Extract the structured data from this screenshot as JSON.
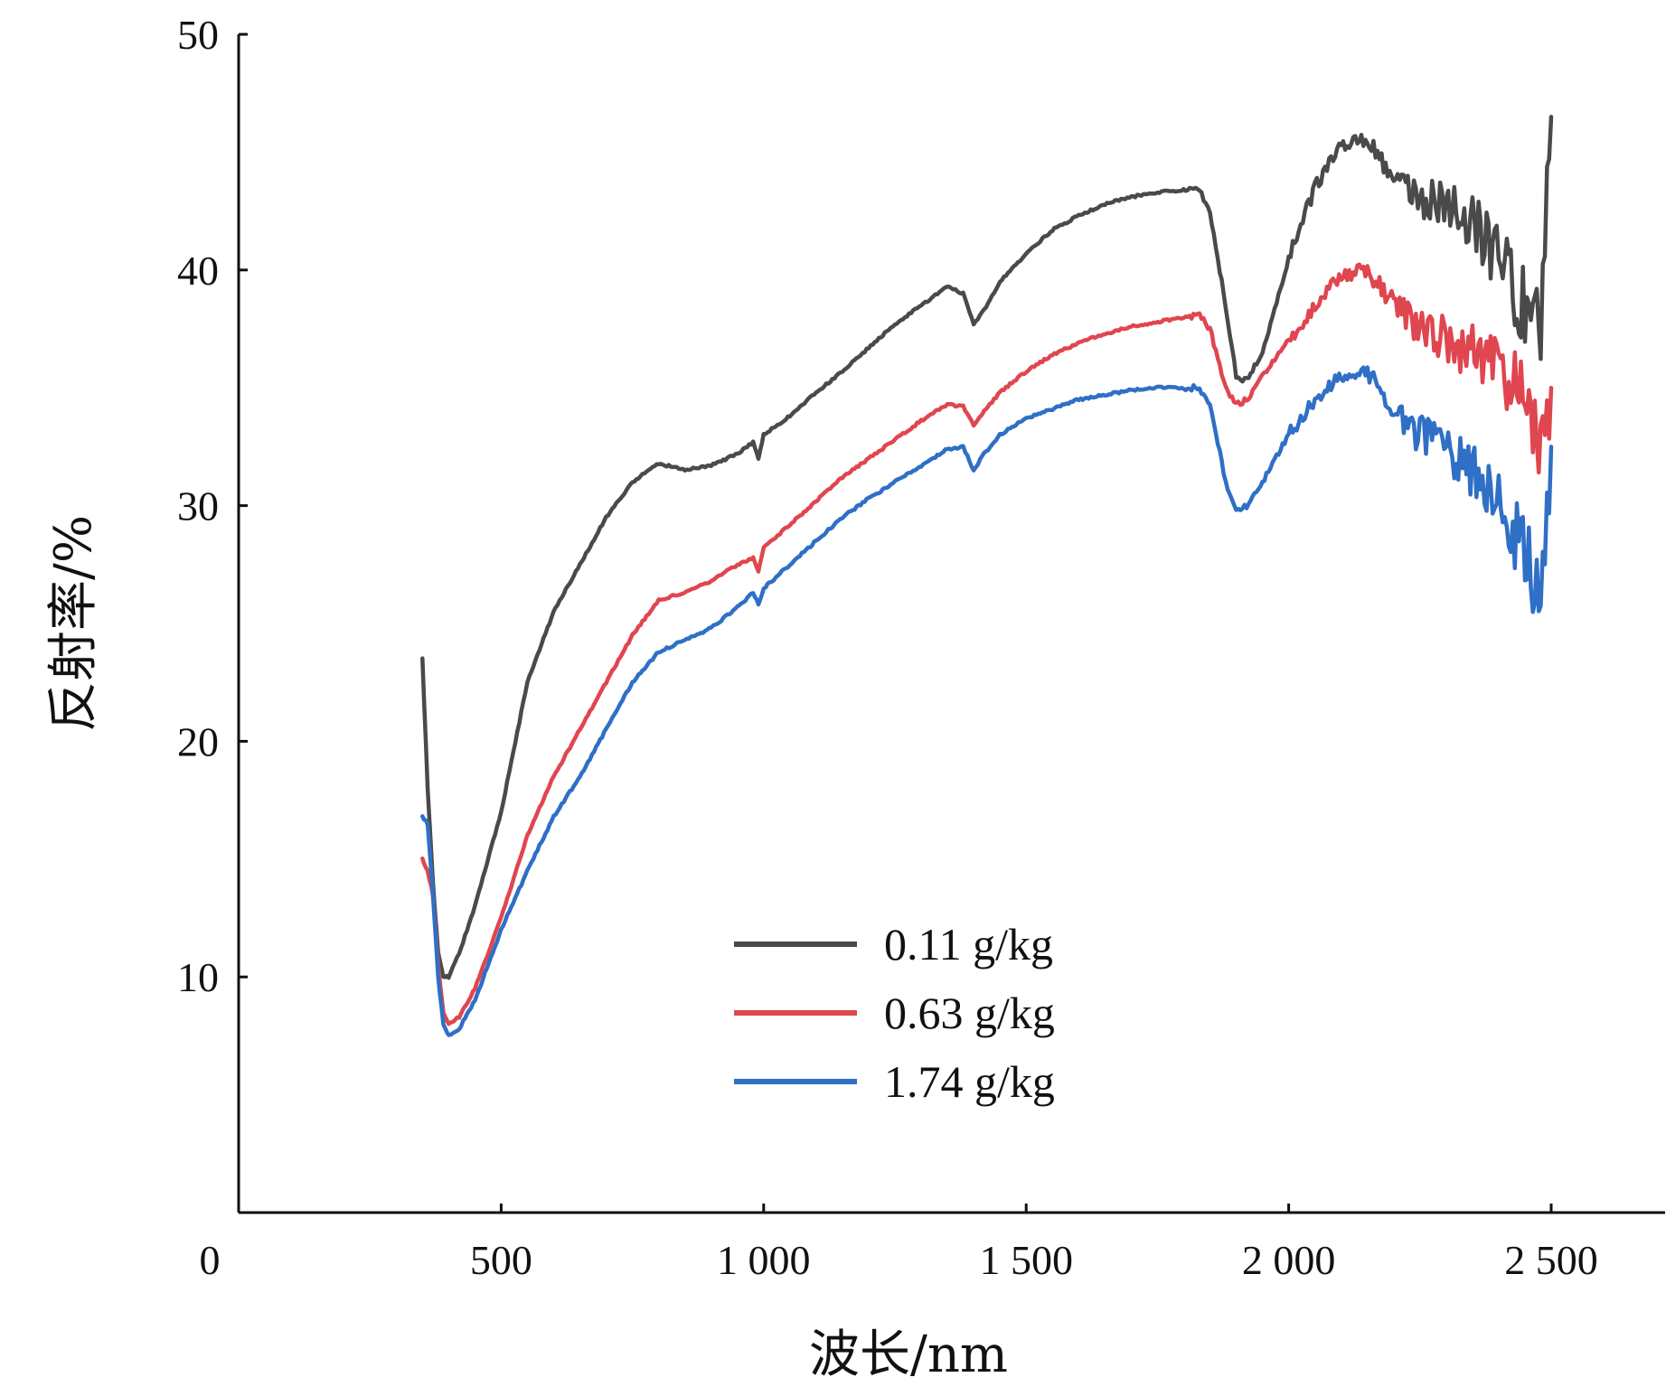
{
  "chart_data": {
    "type": "line",
    "title": "",
    "xlabel": "波长/nm",
    "ylabel": "反射率/%",
    "xlim": [
      0,
      2750
    ],
    "ylim": [
      0,
      50
    ],
    "xticks": [
      0,
      500,
      1000,
      1500,
      2000,
      2500
    ],
    "xtick_labels": [
      "0",
      "500",
      "1 000",
      "1 500",
      "2 000",
      "2 500"
    ],
    "yticks": [
      10,
      20,
      30,
      40,
      50
    ],
    "ytick_labels": [
      "10",
      "20",
      "30",
      "40",
      "50"
    ],
    "grid": false,
    "legend_position": "lower-center",
    "series": [
      {
        "name": "0.11 g/kg",
        "color": "#4a4a4a",
        "x": [
          350,
          360,
          370,
          380,
          390,
          400,
          420,
          450,
          500,
          550,
          600,
          650,
          700,
          750,
          800,
          850,
          900,
          950,
          980,
          990,
          1000,
          1050,
          1100,
          1150,
          1200,
          1250,
          1300,
          1350,
          1380,
          1400,
          1420,
          1450,
          1500,
          1550,
          1600,
          1650,
          1700,
          1750,
          1800,
          1830,
          1850,
          1880,
          1900,
          1920,
          1950,
          2000,
          2050,
          2100,
          2150,
          2200,
          2250,
          2300,
          2350,
          2400,
          2450,
          2480,
          2500
        ],
        "y": [
          23.5,
          18.0,
          14.0,
          11.0,
          10.0,
          10.0,
          11.0,
          13.0,
          17.0,
          22.5,
          25.5,
          27.5,
          29.5,
          31.0,
          31.8,
          31.5,
          31.7,
          32.2,
          32.7,
          32.0,
          33.0,
          33.8,
          34.8,
          35.7,
          36.7,
          37.7,
          38.5,
          39.3,
          39.0,
          37.7,
          38.3,
          39.5,
          40.7,
          41.7,
          42.3,
          42.8,
          43.1,
          43.3,
          43.4,
          43.4,
          42.5,
          38.5,
          35.5,
          35.3,
          36.5,
          40.5,
          43.5,
          45.3,
          45.5,
          44.0,
          43.0,
          43.0,
          42.0,
          40.5,
          38.5,
          38.0,
          46.5
        ]
      },
      {
        "name": "0.63 g/kg",
        "color": "#e0464f",
        "x": [
          350,
          360,
          370,
          380,
          390,
          400,
          420,
          450,
          500,
          550,
          600,
          650,
          700,
          750,
          800,
          850,
          900,
          950,
          980,
          990,
          1000,
          1050,
          1100,
          1150,
          1200,
          1250,
          1300,
          1350,
          1380,
          1400,
          1420,
          1450,
          1500,
          1550,
          1600,
          1650,
          1700,
          1750,
          1800,
          1830,
          1850,
          1880,
          1900,
          1920,
          1950,
          2000,
          2050,
          2100,
          2150,
          2200,
          2250,
          2300,
          2350,
          2400,
          2450,
          2480,
          2500
        ],
        "y": [
          15.0,
          14.5,
          13.5,
          10.5,
          8.5,
          8.0,
          8.3,
          9.5,
          12.5,
          16.0,
          18.5,
          20.5,
          22.5,
          24.5,
          26.0,
          26.3,
          26.8,
          27.5,
          27.8,
          27.2,
          28.2,
          29.2,
          30.2,
          31.2,
          32.0,
          32.8,
          33.6,
          34.3,
          34.2,
          33.4,
          34.0,
          34.8,
          35.7,
          36.4,
          36.9,
          37.3,
          37.6,
          37.8,
          38.0,
          38.1,
          37.5,
          35.0,
          34.3,
          34.5,
          35.5,
          37.0,
          38.5,
          39.8,
          40.0,
          38.5,
          37.5,
          37.0,
          36.5,
          36.0,
          34.5,
          32.0,
          35.0
        ]
      },
      {
        "name": "1.74 g/kg",
        "color": "#2f6fc6",
        "x": [
          350,
          360,
          370,
          380,
          390,
          400,
          420,
          450,
          500,
          550,
          600,
          650,
          700,
          750,
          800,
          850,
          900,
          950,
          980,
          990,
          1000,
          1050,
          1100,
          1150,
          1200,
          1250,
          1300,
          1350,
          1380,
          1400,
          1420,
          1450,
          1500,
          1550,
          1600,
          1650,
          1700,
          1750,
          1800,
          1830,
          1850,
          1880,
          1900,
          1920,
          1950,
          2000,
          2050,
          2100,
          2150,
          2200,
          2250,
          2300,
          2350,
          2400,
          2450,
          2480,
          2500
        ],
        "y": [
          16.8,
          16.5,
          13.5,
          10.0,
          8.0,
          7.5,
          7.8,
          9.0,
          12.0,
          14.5,
          16.8,
          18.5,
          20.5,
          22.5,
          23.8,
          24.3,
          24.8,
          25.7,
          26.3,
          25.8,
          26.5,
          27.5,
          28.5,
          29.5,
          30.3,
          31.0,
          31.7,
          32.4,
          32.5,
          31.5,
          32.2,
          33.0,
          33.7,
          34.1,
          34.5,
          34.7,
          34.9,
          35.0,
          35.0,
          35.0,
          34.3,
          31.0,
          29.8,
          30.0,
          31.0,
          33.0,
          34.5,
          35.5,
          35.7,
          34.0,
          33.0,
          32.5,
          31.5,
          30.0,
          28.0,
          26.5,
          32.5
        ]
      }
    ]
  }
}
